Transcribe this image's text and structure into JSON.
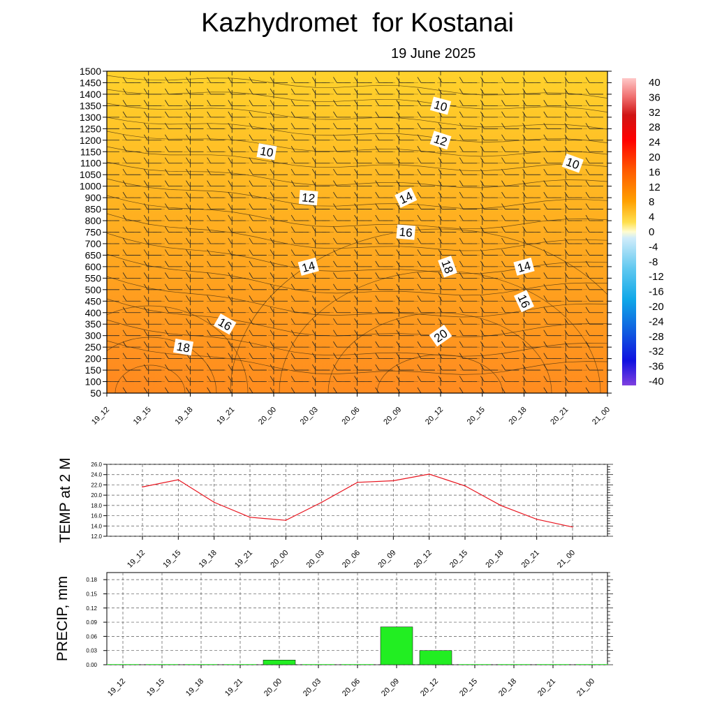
{
  "header": {
    "title": "Kazhydromet  for Kostanai",
    "subtitle": "19 June 2025"
  },
  "time_labels": [
    "19_12",
    "19_15",
    "19_18",
    "19_21",
    "20_00",
    "20_03",
    "20_06",
    "20_09",
    "20_12",
    "20_15",
    "20_18",
    "20_21",
    "21_00"
  ],
  "chart_data": [
    {
      "type": "heatmap",
      "title": "",
      "xlabel": "",
      "ylabel": "",
      "x": [
        "19_12",
        "19_15",
        "19_18",
        "19_21",
        "20_00",
        "20_03",
        "20_06",
        "20_09",
        "20_12",
        "20_15",
        "20_18",
        "20_21",
        "21_00"
      ],
      "y_ticks": [
        50,
        100,
        150,
        200,
        250,
        300,
        350,
        400,
        450,
        500,
        550,
        600,
        650,
        700,
        750,
        800,
        850,
        900,
        1000,
        1050,
        1100,
        1150,
        1200,
        1250,
        1300,
        1350,
        1400,
        1450,
        1500
      ],
      "ylim": [
        50,
        1500
      ],
      "colorbar": {
        "ticks": [
          40,
          36,
          32,
          28,
          24,
          20,
          16,
          12,
          8,
          4,
          0,
          -4,
          -8,
          -12,
          -16,
          -20,
          -24,
          -28,
          -32,
          -36,
          -40
        ],
        "range": [
          -40,
          40
        ]
      },
      "contour_labels": [
        {
          "value": "10",
          "time": "20_00",
          "level": 1150
        },
        {
          "value": "10",
          "time": "20_12",
          "level": 1350
        },
        {
          "value": "10",
          "time": "20_21",
          "level": 1100
        },
        {
          "value": "12",
          "time": "20_03",
          "level": 900
        },
        {
          "value": "12",
          "time": "20_12",
          "level": 1200
        },
        {
          "value": "14",
          "time": "20_09",
          "level": 900
        },
        {
          "value": "14",
          "time": "20_03",
          "level": 600
        },
        {
          "value": "14",
          "time": "20_18",
          "level": 600
        },
        {
          "value": "16",
          "time": "20_09",
          "level": 750
        },
        {
          "value": "16",
          "time": "19_21",
          "level": 350
        },
        {
          "value": "16",
          "time": "20_18",
          "level": 450
        },
        {
          "value": "18",
          "time": "20_12",
          "level": 600
        },
        {
          "value": "18",
          "time": "19_18",
          "level": 250
        },
        {
          "value": "20",
          "time": "20_12",
          "level": 300
        }
      ],
      "wind_barbs": true
    },
    {
      "type": "line",
      "title": "",
      "xlabel": "",
      "ylabel": "TEMP at 2 M",
      "categories": [
        "19_12",
        "19_15",
        "19_18",
        "19_21",
        "20_00",
        "20_03",
        "20_06",
        "20_09",
        "20_12",
        "20_15",
        "20_18",
        "20_21",
        "21_00"
      ],
      "series": [
        {
          "values": [
            21.6,
            23.0,
            18.6,
            15.7,
            15.1,
            18.6,
            22.5,
            22.8,
            24.1,
            21.8,
            18.0,
            15.3,
            13.8
          ]
        }
      ],
      "y_ticks": [
        "26.0",
        "24.0",
        "22.0",
        "20.0",
        "18.0",
        "16.0",
        "14.0",
        "12.0"
      ],
      "ylim": [
        12,
        26
      ],
      "grid": true,
      "color": "#e8141e"
    },
    {
      "type": "bar",
      "title": "",
      "xlabel": "",
      "ylabel": "PRECIP, mm",
      "categories": [
        "19_12",
        "19_15",
        "19_18",
        "19_21",
        "20_00",
        "20_03",
        "20_06",
        "20_09",
        "20_12",
        "20_15",
        "20_18",
        "20_21",
        "21_00"
      ],
      "values": [
        0,
        0,
        0,
        0,
        0.01,
        0,
        0,
        0.08,
        0.03,
        0,
        0,
        0,
        0
      ],
      "y_ticks": [
        "0.18",
        "0.15",
        "0.12",
        "0.09",
        "0.06",
        "0.03",
        "0.00"
      ],
      "ylim": [
        0,
        0.195
      ],
      "grid": true,
      "color": "#22ee22"
    }
  ]
}
